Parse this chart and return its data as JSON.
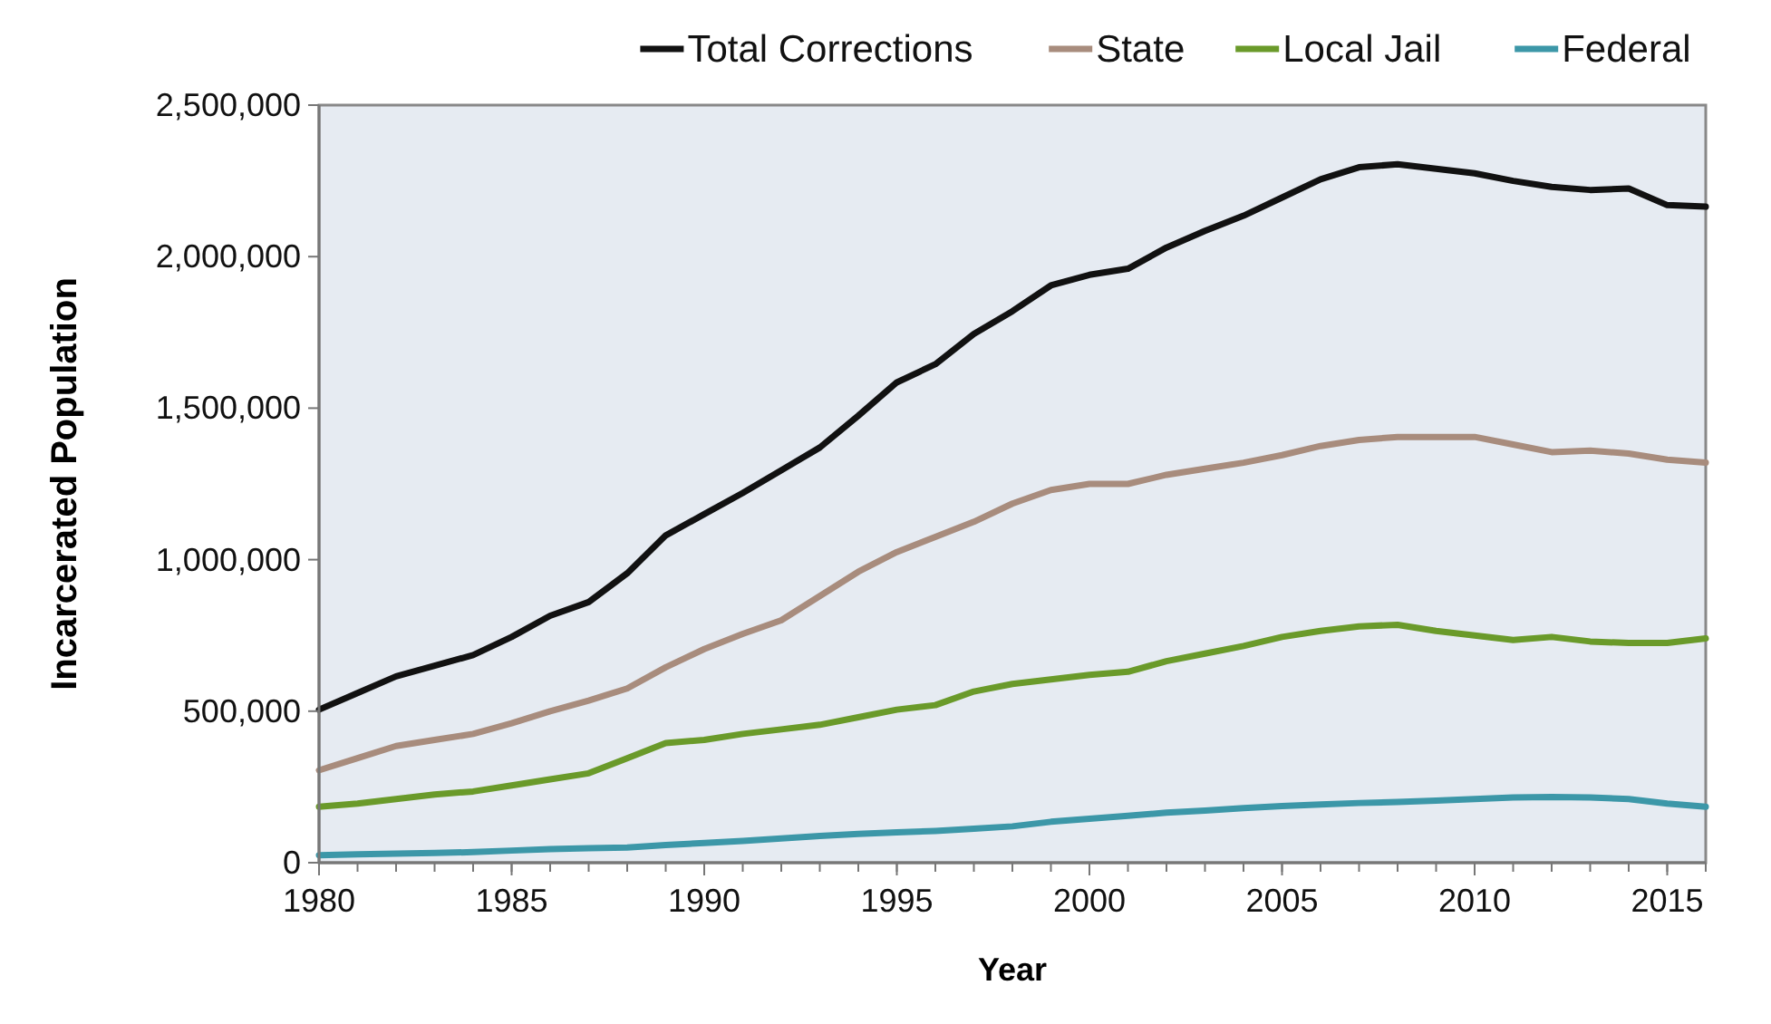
{
  "chart_data": {
    "type": "line",
    "xlabel": "Year",
    "ylabel": "Incarcerated Population",
    "x": [
      1980,
      1981,
      1982,
      1983,
      1984,
      1985,
      1986,
      1987,
      1988,
      1989,
      1990,
      1991,
      1992,
      1993,
      1994,
      1995,
      1996,
      1997,
      1998,
      1999,
      2000,
      2001,
      2002,
      2003,
      2004,
      2005,
      2006,
      2007,
      2008,
      2009,
      2010,
      2011,
      2012,
      2013,
      2014,
      2015,
      2016
    ],
    "xlim": [
      1980,
      2016
    ],
    "xticks": [
      1980,
      1985,
      1990,
      1995,
      2000,
      2005,
      2010,
      2015
    ],
    "ylim": [
      0,
      2500000
    ],
    "yticks": [
      {
        "value": 0,
        "label": "0"
      },
      {
        "value": 500000,
        "label": "500,000"
      },
      {
        "value": 1000000,
        "label": "1,000,000"
      },
      {
        "value": 1500000,
        "label": "1,500,000"
      },
      {
        "value": 2000000,
        "label": "2,000,000"
      },
      {
        "value": 2500000,
        "label": "2,500,000"
      }
    ],
    "grid": false,
    "legend": "top right",
    "marker": "none",
    "line_style": "solid",
    "series": [
      {
        "name": "Total Corrections",
        "color": "#111111",
        "values": [
          505000,
          560000,
          615000,
          650000,
          685000,
          745000,
          815000,
          860000,
          955000,
          1080000,
          1150000,
          1220000,
          1295000,
          1370000,
          1475000,
          1585000,
          1645000,
          1745000,
          1820000,
          1905000,
          1940000,
          1960000,
          2030000,
          2085000,
          2135000,
          2195000,
          2255000,
          2295000,
          2305000,
          2290000,
          2275000,
          2250000,
          2230000,
          2220000,
          2225000,
          2170000,
          2165000
        ]
      },
      {
        "name": "State",
        "color": "#a88c7d",
        "values": [
          305000,
          345000,
          385000,
          405000,
          425000,
          460000,
          500000,
          535000,
          575000,
          645000,
          705000,
          755000,
          800000,
          880000,
          960000,
          1025000,
          1075000,
          1125000,
          1185000,
          1230000,
          1250000,
          1250000,
          1280000,
          1300000,
          1320000,
          1345000,
          1375000,
          1395000,
          1405000,
          1405000,
          1405000,
          1380000,
          1355000,
          1360000,
          1350000,
          1330000,
          1320000
        ]
      },
      {
        "name": "Local Jail",
        "color": "#6a9a2a",
        "values": [
          185000,
          195000,
          210000,
          225000,
          235000,
          255000,
          275000,
          295000,
          345000,
          395000,
          405000,
          425000,
          440000,
          455000,
          480000,
          505000,
          520000,
          565000,
          590000,
          605000,
          620000,
          630000,
          665000,
          690000,
          715000,
          745000,
          765000,
          780000,
          785000,
          765000,
          750000,
          735000,
          745000,
          730000,
          725000,
          725000,
          740000
        ]
      },
      {
        "name": "Federal",
        "color": "#3c97a8",
        "values": [
          25000,
          28000,
          30000,
          32000,
          35000,
          40000,
          45000,
          48000,
          50000,
          58000,
          65000,
          72000,
          80000,
          88000,
          95000,
          100000,
          105000,
          112000,
          120000,
          135000,
          145000,
          155000,
          165000,
          172000,
          180000,
          187000,
          192000,
          197000,
          200000,
          205000,
          210000,
          215000,
          217000,
          215000,
          210000,
          195000,
          185000
        ]
      }
    ]
  }
}
